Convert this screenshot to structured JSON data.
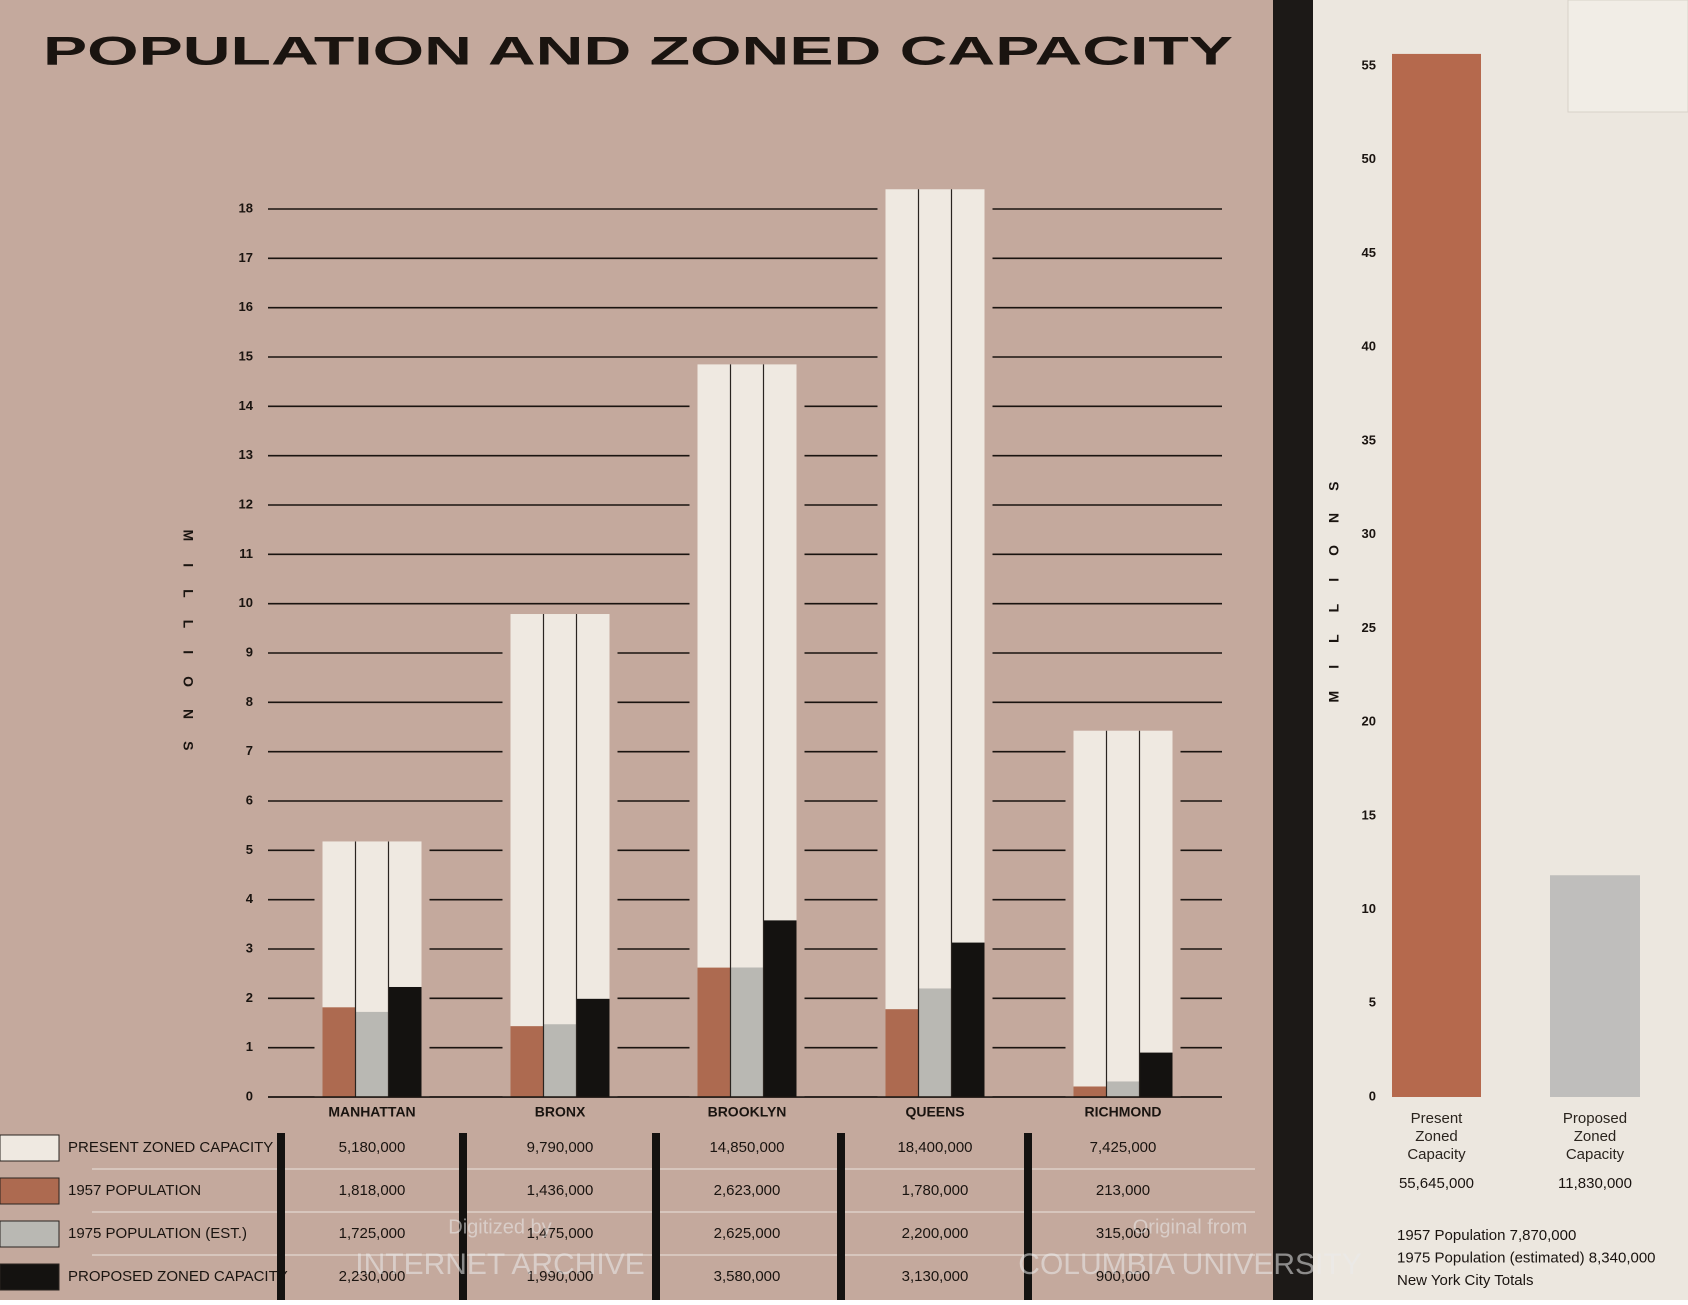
{
  "chart_data": [
    {
      "type": "grouped_bar",
      "title": "POPULATION AND ZONED CAPACITY",
      "y_label": "MILLIONS",
      "categories": [
        "MANHATTAN",
        "BRONX",
        "BROOKLYN",
        "QUEENS",
        "RICHMOND"
      ],
      "series": [
        {
          "name": "PRESENT ZONED CAPACITY",
          "color": "#efe9e1",
          "values": [
            5.18,
            9.79,
            14.85,
            18.4,
            7.425
          ],
          "value_labels": [
            "5,180,000",
            "9,790,000",
            "14,850,000",
            "18,400,000",
            "7,425,000"
          ]
        },
        {
          "name": "1957 POPULATION",
          "color": "#ad6a50",
          "values": [
            1.818,
            1.436,
            2.623,
            1.78,
            0.213
          ],
          "value_labels": [
            "1,818,000",
            "1,436,000",
            "2,623,000",
            "1,780,000",
            "213,000"
          ]
        },
        {
          "name": "1975 POPULATION (EST.)",
          "color": "#b9b8b3",
          "values": [
            1.725,
            1.475,
            2.625,
            2.2,
            0.315
          ],
          "value_labels": [
            "1,725,000",
            "1,475,000",
            "2,625,000",
            "2,200,000",
            "315,000"
          ]
        },
        {
          "name": "PROPOSED ZONED CAPACITY",
          "color": "#141210",
          "values": [
            2.23,
            1.99,
            3.58,
            3.13,
            0.9
          ],
          "value_labels": [
            "2,230,000",
            "1,990,000",
            "3,580,000",
            "3,130,000",
            "900,000"
          ]
        }
      ],
      "ylim": [
        0,
        18
      ],
      "yticks": [
        0,
        1,
        2,
        3,
        4,
        5,
        6,
        7,
        8,
        9,
        10,
        11,
        12,
        13,
        14,
        15,
        16,
        17,
        18
      ],
      "grid": true
    },
    {
      "type": "bar",
      "y_label": "MILLIONS",
      "categories": [
        "Present Zoned Capacity",
        "Proposed Zoned Capacity"
      ],
      "values": [
        55.645,
        11.83
      ],
      "value_labels": [
        "55,645,000",
        "11,830,000"
      ],
      "colors": [
        "#b5694d",
        "#bfbebc"
      ],
      "ylim": [
        0,
        55
      ],
      "yticks": [
        0,
        5,
        10,
        15,
        20,
        25,
        30,
        35,
        40,
        45,
        50,
        55
      ],
      "grid": false,
      "notes": [
        "1957 Population 7,870,000",
        "1975 Population (estimated) 8,340,000",
        "New York City Totals"
      ]
    }
  ],
  "watermarks": [
    "Digitized by",
    "INTERNET ARCHIVE",
    "Original from",
    "COLUMBIA UNIVERSITY"
  ]
}
